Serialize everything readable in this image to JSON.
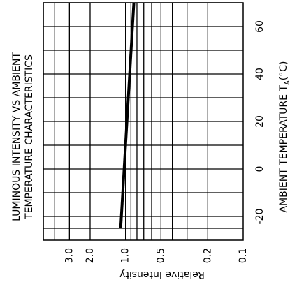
{
  "chart_data": {
    "type": "line",
    "title_lines": [
      "LUMINOUS INTENSITY VS AMBIENT",
      "TEMPERATURE CHARACTERISTICS"
    ],
    "xlabel": "AMBIENT TEMPERATURE T",
    "xlabel_subscript": "A",
    "xlabel_suffix": "(°C)",
    "ylabel": "Relative Intensity",
    "x_scale": "linear",
    "y_scale": "log",
    "xlim": [
      -30,
      70
    ],
    "ylim": [
      0.1,
      5
    ],
    "x_ticks": [
      {
        "value": -20,
        "label": "-20"
      },
      {
        "value": 0,
        "label": "0"
      },
      {
        "value": 20,
        "label": "20"
      },
      {
        "value": 40,
        "label": "40"
      },
      {
        "value": 60,
        "label": "60"
      }
    ],
    "y_ticks": [
      {
        "value": 3.0,
        "label": "3.0"
      },
      {
        "value": 2.0,
        "label": "2.0"
      },
      {
        "value": 1.0,
        "label": "1.0"
      },
      {
        "value": 0.5,
        "label": "0.5"
      },
      {
        "value": 0.2,
        "label": "0.2"
      },
      {
        "value": 0.1,
        "label": "0.1"
      }
    ],
    "x_gridlines": [
      -25,
      -20,
      -10,
      0,
      10,
      20,
      30,
      40,
      50,
      60,
      70
    ],
    "y_gridlines": [
      5,
      4,
      3,
      2,
      1,
      0.9,
      0.8,
      0.7,
      0.6,
      0.5,
      0.4,
      0.3,
      0.2
    ],
    "grid": true,
    "series": [
      {
        "values": [
          [
            -25,
            1.1
          ],
          [
            70,
            0.85
          ]
        ]
      }
    ]
  }
}
